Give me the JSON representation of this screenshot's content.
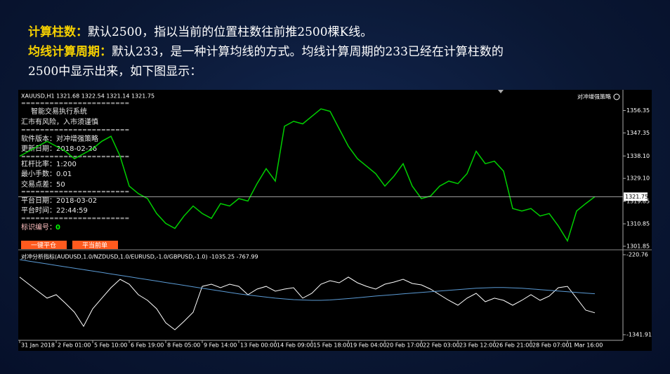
{
  "intro": {
    "items": [
      {
        "label": "计算柱数：",
        "text": "默认2500，指以当前的位置柱数往前推2500棵K线。"
      },
      {
        "label": "均线计算周期：",
        "text": "默认233，是一种计算均线的方式。均线计算周期的233已经在计算柱数的",
        "continuation": "2500中显示出来，如下图显示："
      }
    ]
  },
  "terminal": {
    "top_right": "对冲增强策略",
    "panel": {
      "separator": "=======================",
      "system": "智能交易执行系统",
      "risk": "汇市有风险，入市须谨慎",
      "version": "软件版本：对冲增强策略",
      "updated": "更新日期：2018-02-26",
      "leverage": "杠杆比率：1:200",
      "min_lot": "最小手数：0.01",
      "spread": "交易点差：50",
      "platform_date": "平台日期：2018-03-02",
      "platform_time": "平台时间：22:44:59",
      "id_label": "标识编号：",
      "id_value": "0"
    },
    "buttons": [
      "一键平仓",
      "平当前单"
    ]
  },
  "chart_data": [
    {
      "type": "line",
      "title": "XAUUSD,H1  1321.68 1322.54 1321.14 1321.75",
      "color": "#00d000",
      "values": [
        1338,
        1340,
        1342,
        1344,
        1342,
        1340,
        1337,
        1339,
        1341,
        1344,
        1346,
        1338,
        1326,
        1323,
        1321,
        1315,
        1311,
        1309,
        1314,
        1318,
        1315,
        1313,
        1319,
        1318,
        1321,
        1320,
        1327,
        1333,
        1328,
        1350,
        1352,
        1351,
        1354,
        1357,
        1356,
        1349,
        1342,
        1337,
        1334,
        1331,
        1326,
        1330,
        1335,
        1326,
        1321,
        1322,
        1326,
        1328,
        1327,
        1331,
        1340,
        1335,
        1336,
        1332,
        1317,
        1316,
        1317,
        1314,
        1315,
        1310,
        1304,
        1316,
        1319,
        1321.75
      ],
      "current_price": 1321.75,
      "ylim": [
        1300.7,
        1364.1
      ],
      "yticks": [
        1356.35,
        1347.35,
        {
          "value": 1338.1,
          "label": "1338.10"
        },
        {
          "value": 1329.1,
          "label": "1329.10"
        },
        1319.85,
        1310.85,
        1301.85
      ]
    },
    {
      "type": "line",
      "title": "对冲分析指标(AUDUSD,1.0/NZDUSD,1.0/EURUSD,-1.0/GBPUSD,-1.0) -1035.25 -767.99",
      "categories": [
        "31 Jan 2018",
        null,
        null,
        null,
        "2 Feb 01:00",
        null,
        null,
        null,
        "5 Feb 10:00",
        null,
        null,
        null,
        "6 Feb 19:00",
        null,
        null,
        null,
        "8 Feb 05:00",
        null,
        null,
        null,
        "9 Feb 14:00",
        null,
        null,
        null,
        "13 Feb 00:00",
        null,
        null,
        null,
        "14 Feb 09:00",
        null,
        null,
        null,
        "15 Feb 18:00",
        null,
        null,
        null,
        "19 Feb 04:00",
        null,
        null,
        null,
        "20 Feb 17:00",
        null,
        null,
        null,
        "22 Feb 03:00",
        null,
        null,
        null,
        "23 Feb 12:00",
        null,
        null,
        null,
        "26 Feb 21:00",
        null,
        null,
        null,
        "28 Feb 07:00",
        null,
        null,
        null,
        "1 Mar 16:00",
        null,
        null,
        null
      ],
      "series": [
        {
          "color": "#ffffff",
          "values": [
            -535,
            -634,
            -732,
            -830,
            -781,
            -899,
            -1027,
            -1224,
            -978,
            -830,
            -683,
            -565,
            -634,
            -781,
            -860,
            -978,
            -1175,
            -1273,
            -1155,
            -1027,
            -664,
            -634,
            -683,
            -634,
            -664,
            -781,
            -703,
            -664,
            -732,
            -703,
            -683,
            -830,
            -762,
            -634,
            -585,
            -614,
            -535,
            -614,
            -664,
            -703,
            -634,
            -604,
            -565,
            -624,
            -644,
            -703,
            -781,
            -860,
            -929,
            -830,
            -762,
            -880,
            -830,
            -860,
            -929,
            -860,
            -781,
            -860,
            -801,
            -683,
            -664,
            -830,
            -998,
            -1035.25
          ]
        },
        {
          "color": "#5b9bd5",
          "values": [
            -290,
            -310,
            -330,
            -350,
            -370,
            -390,
            -410,
            -430,
            -450,
            -470,
            -490,
            -510,
            -530,
            -550,
            -570,
            -590,
            -610,
            -630,
            -650,
            -670,
            -690,
            -710,
            -730,
            -750,
            -770,
            -785,
            -800,
            -815,
            -830,
            -840,
            -850,
            -855,
            -860,
            -860,
            -855,
            -845,
            -835,
            -825,
            -812,
            -800,
            -790,
            -780,
            -770,
            -760,
            -750,
            -740,
            -730,
            -720,
            -710,
            -700,
            -690,
            -685,
            -680,
            -680,
            -685,
            -690,
            -700,
            -710,
            -720,
            -730,
            -740,
            -750,
            -760,
            -767.99
          ]
        }
      ],
      "ylim": [
        -1400.9,
        -161.8
      ],
      "yticks": [
        -220.76,
        -1341.91
      ]
    }
  ]
}
